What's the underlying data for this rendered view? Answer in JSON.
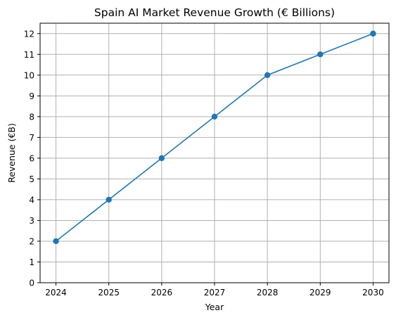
{
  "chart_data": {
    "type": "line",
    "title": "Spain AI Market Revenue Growth (€ Billions)",
    "xlabel": "Year",
    "ylabel": "Revenue (€B)",
    "x": [
      2024,
      2025,
      2026,
      2027,
      2028,
      2029,
      2030
    ],
    "series": [
      {
        "values": [
          2,
          4,
          6,
          8,
          10,
          11,
          12
        ],
        "color": "#1f77b4",
        "marker": "circle"
      }
    ],
    "x_ticks": [
      "2024",
      "2025",
      "2026",
      "2027",
      "2028",
      "2029",
      "2030"
    ],
    "y_ticks": [
      "0",
      "1",
      "2",
      "3",
      "4",
      "5",
      "6",
      "7",
      "8",
      "9",
      "10",
      "11",
      "12"
    ],
    "xlim": [
      2023.7,
      2030.3
    ],
    "ylim": [
      0,
      12.5
    ],
    "grid": true,
    "legend": "none"
  }
}
